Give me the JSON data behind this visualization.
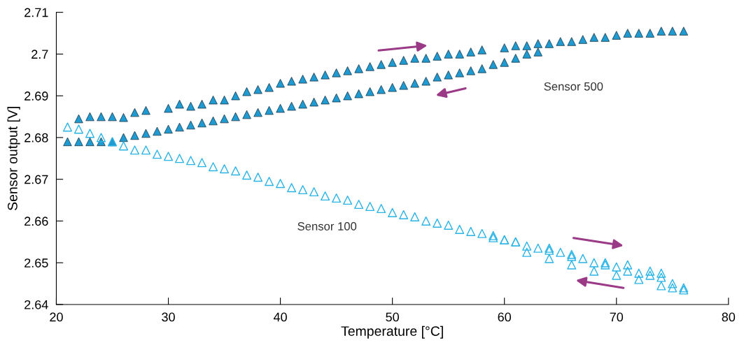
{
  "chart_data": {
    "type": "scatter",
    "xlabel": "Temperature [°C]",
    "ylabel": "Sensor output [V]",
    "xlim": [
      20,
      80
    ],
    "xticks": [
      20,
      30,
      40,
      50,
      60,
      70,
      80
    ],
    "ylim": [
      2.64,
      2.71
    ],
    "yticks": [
      2.64,
      2.65,
      2.66,
      2.67,
      2.68,
      2.69,
      2.7,
      2.71
    ],
    "grid": false,
    "legend": false,
    "marker": "triangle",
    "series": [
      {
        "name": "Sensor 500",
        "color": "#1e9bd2",
        "x": [
          22,
          23,
          24,
          25,
          26,
          27,
          28,
          30,
          31,
          32,
          33,
          34,
          35,
          36,
          37,
          38,
          39,
          40,
          41,
          42,
          43,
          44,
          45,
          46,
          47,
          48,
          49,
          50,
          51,
          52,
          53,
          54,
          55,
          56,
          57,
          58,
          60,
          61,
          62,
          63,
          64,
          65,
          66,
          67,
          68,
          69,
          70,
          71,
          72,
          73,
          74,
          75,
          76,
          21,
          22,
          23,
          24,
          25,
          26,
          27,
          28,
          29,
          30,
          31,
          32,
          33,
          34,
          35,
          36,
          37,
          38,
          39,
          40,
          41,
          42,
          43,
          44,
          45,
          46,
          47,
          48,
          49,
          50,
          51,
          52,
          53,
          54,
          55,
          56,
          57,
          58,
          59,
          60,
          61,
          62,
          63
        ],
        "values": [
          2.6845,
          2.685,
          2.685,
          2.685,
          2.6848,
          2.686,
          2.6865,
          2.687,
          2.688,
          2.6875,
          2.688,
          2.689,
          2.689,
          2.69,
          2.691,
          2.6915,
          2.692,
          2.693,
          2.6935,
          2.694,
          2.6945,
          2.695,
          2.6955,
          2.696,
          2.6965,
          2.697,
          2.6975,
          2.698,
          2.6985,
          2.699,
          2.699,
          2.6995,
          2.7,
          2.7,
          2.7005,
          2.701,
          2.7015,
          2.702,
          2.702,
          2.7025,
          2.7025,
          2.703,
          2.703,
          2.7035,
          2.704,
          2.704,
          2.7045,
          2.705,
          2.705,
          2.705,
          2.7055,
          2.7055,
          2.7055,
          2.679,
          2.679,
          2.679,
          2.679,
          2.679,
          2.68,
          2.6805,
          2.681,
          2.6815,
          2.682,
          2.6825,
          2.683,
          2.6835,
          2.684,
          2.6845,
          2.685,
          2.6855,
          2.686,
          2.6865,
          2.687,
          2.6875,
          2.688,
          2.6885,
          2.689,
          2.6895,
          2.69,
          2.6905,
          2.691,
          2.6915,
          2.692,
          2.6925,
          2.693,
          2.6935,
          2.6945,
          2.695,
          2.6955,
          2.696,
          2.6965,
          2.6975,
          2.698,
          2.699,
          2.7,
          2.7005
        ]
      },
      {
        "name": "Sensor 100",
        "color": "#2ab4e6",
        "x": [
          21,
          22,
          23,
          24,
          25,
          26,
          27,
          28,
          29,
          30,
          31,
          32,
          33,
          34,
          35,
          36,
          37,
          38,
          39,
          40,
          41,
          42,
          43,
          44,
          45,
          46,
          47,
          48,
          49,
          50,
          51,
          52,
          53,
          54,
          55,
          56,
          57,
          58,
          59,
          60,
          61,
          62,
          63,
          64,
          65,
          66,
          67,
          68,
          69,
          70,
          71,
          72,
          73,
          74,
          75,
          76,
          59,
          60,
          61,
          64,
          66,
          69,
          71,
          73,
          74,
          62,
          64,
          66,
          68,
          70,
          72,
          74,
          75,
          76
        ],
        "values": [
          2.6825,
          2.682,
          2.681,
          2.68,
          2.679,
          2.678,
          2.677,
          2.677,
          2.676,
          2.6755,
          2.675,
          2.6745,
          2.674,
          2.673,
          2.6725,
          2.672,
          2.671,
          2.6705,
          2.6695,
          2.669,
          2.668,
          2.6675,
          2.667,
          2.666,
          2.6655,
          2.665,
          2.664,
          2.6635,
          2.663,
          2.662,
          2.6615,
          2.661,
          2.66,
          2.6595,
          2.659,
          2.658,
          2.6575,
          2.657,
          2.656,
          2.6555,
          2.655,
          2.654,
          2.6535,
          2.653,
          2.6525,
          2.6515,
          2.651,
          2.65,
          2.6495,
          2.649,
          2.648,
          2.6475,
          2.647,
          2.6465,
          2.645,
          2.644,
          2.6565,
          2.6555,
          2.655,
          2.6535,
          2.652,
          2.65,
          2.6495,
          2.648,
          2.6475,
          2.6525,
          2.651,
          2.6495,
          2.648,
          2.647,
          2.646,
          2.6445,
          2.644,
          2.6435
        ]
      }
    ]
  }
}
